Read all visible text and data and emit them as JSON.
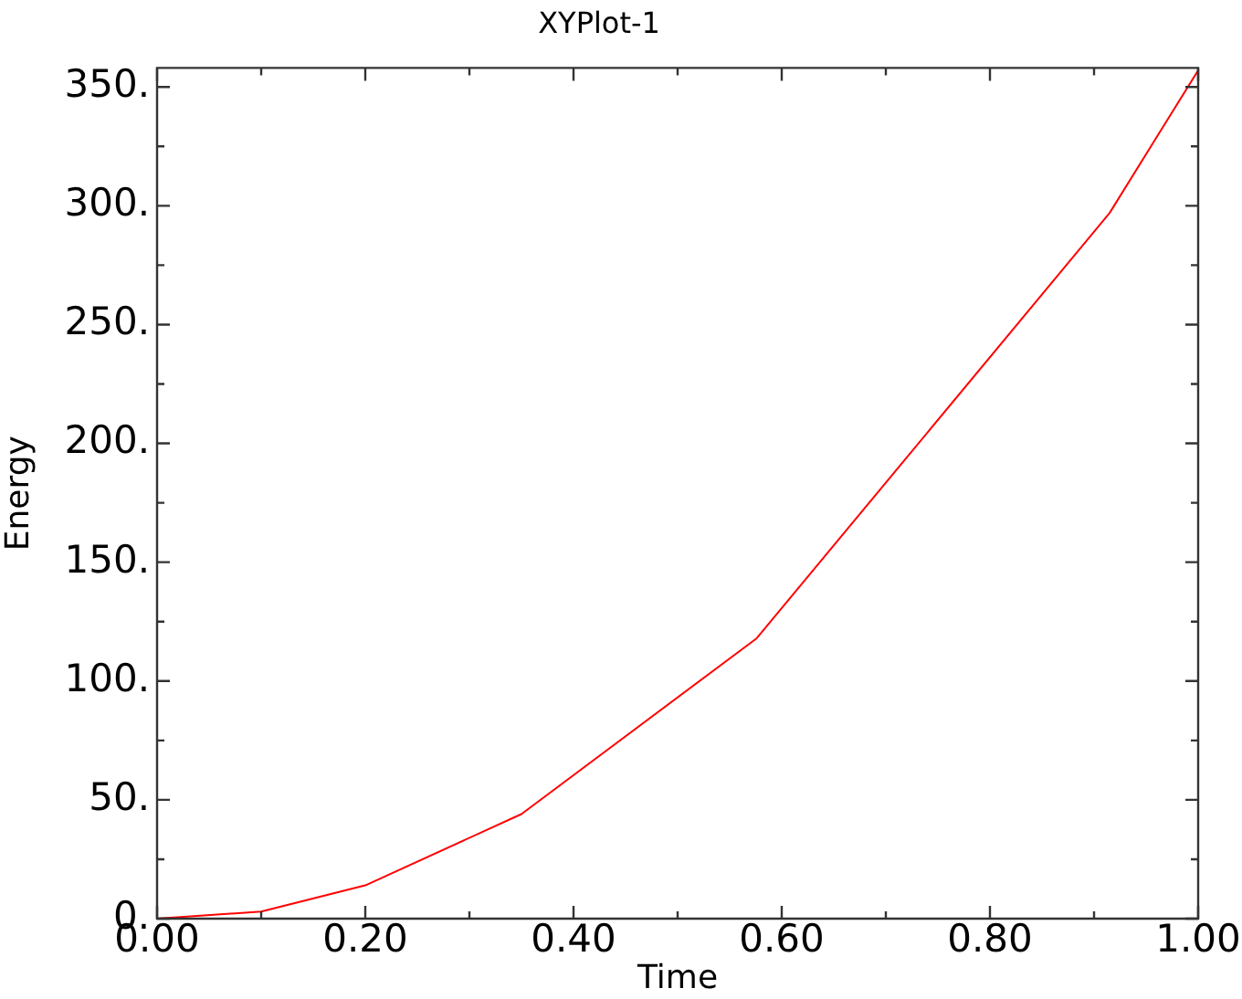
{
  "chart_data": {
    "type": "line",
    "title": "XYPlot-1",
    "xlabel": "Time",
    "ylabel": "Energy",
    "x": [
      0,
      0.1,
      0.2,
      0.35,
      0.576,
      0.915,
      1.0
    ],
    "series": [
      {
        "color": "#ff0000",
        "values": [
          0,
          3,
          14,
          44,
          118,
          297,
          357
        ]
      }
    ],
    "xlim": [
      0,
      1
    ],
    "ylim": [
      0,
      358
    ],
    "xticks": [
      {
        "value": 0,
        "label": "0.00"
      },
      {
        "value": 0.1,
        "label": null
      },
      {
        "value": 0.2,
        "label": "0.20"
      },
      {
        "value": 0.3,
        "label": null
      },
      {
        "value": 0.4,
        "label": "0.40"
      },
      {
        "value": 0.5,
        "label": null
      },
      {
        "value": 0.6,
        "label": "0.60"
      },
      {
        "value": 0.7,
        "label": null
      },
      {
        "value": 0.8,
        "label": "0.80"
      },
      {
        "value": 0.9,
        "label": null
      },
      {
        "value": 1,
        "label": "1.00"
      }
    ],
    "yticks": [
      {
        "value": 0,
        "label": "0."
      },
      {
        "value": 25,
        "label": null
      },
      {
        "value": 50,
        "label": "50."
      },
      {
        "value": 75,
        "label": null
      },
      {
        "value": 100,
        "label": "100."
      },
      {
        "value": 125,
        "label": null
      },
      {
        "value": 150,
        "label": "150."
      },
      {
        "value": 175,
        "label": null
      },
      {
        "value": 200,
        "label": "200."
      },
      {
        "value": 225,
        "label": null
      },
      {
        "value": 250,
        "label": "250."
      },
      {
        "value": 275,
        "label": null
      },
      {
        "value": 300,
        "label": "300."
      },
      {
        "value": 325,
        "label": null
      },
      {
        "value": 350,
        "label": "350."
      }
    ],
    "grid": false,
    "legend": false,
    "marker": "none",
    "line_style": "solid"
  }
}
